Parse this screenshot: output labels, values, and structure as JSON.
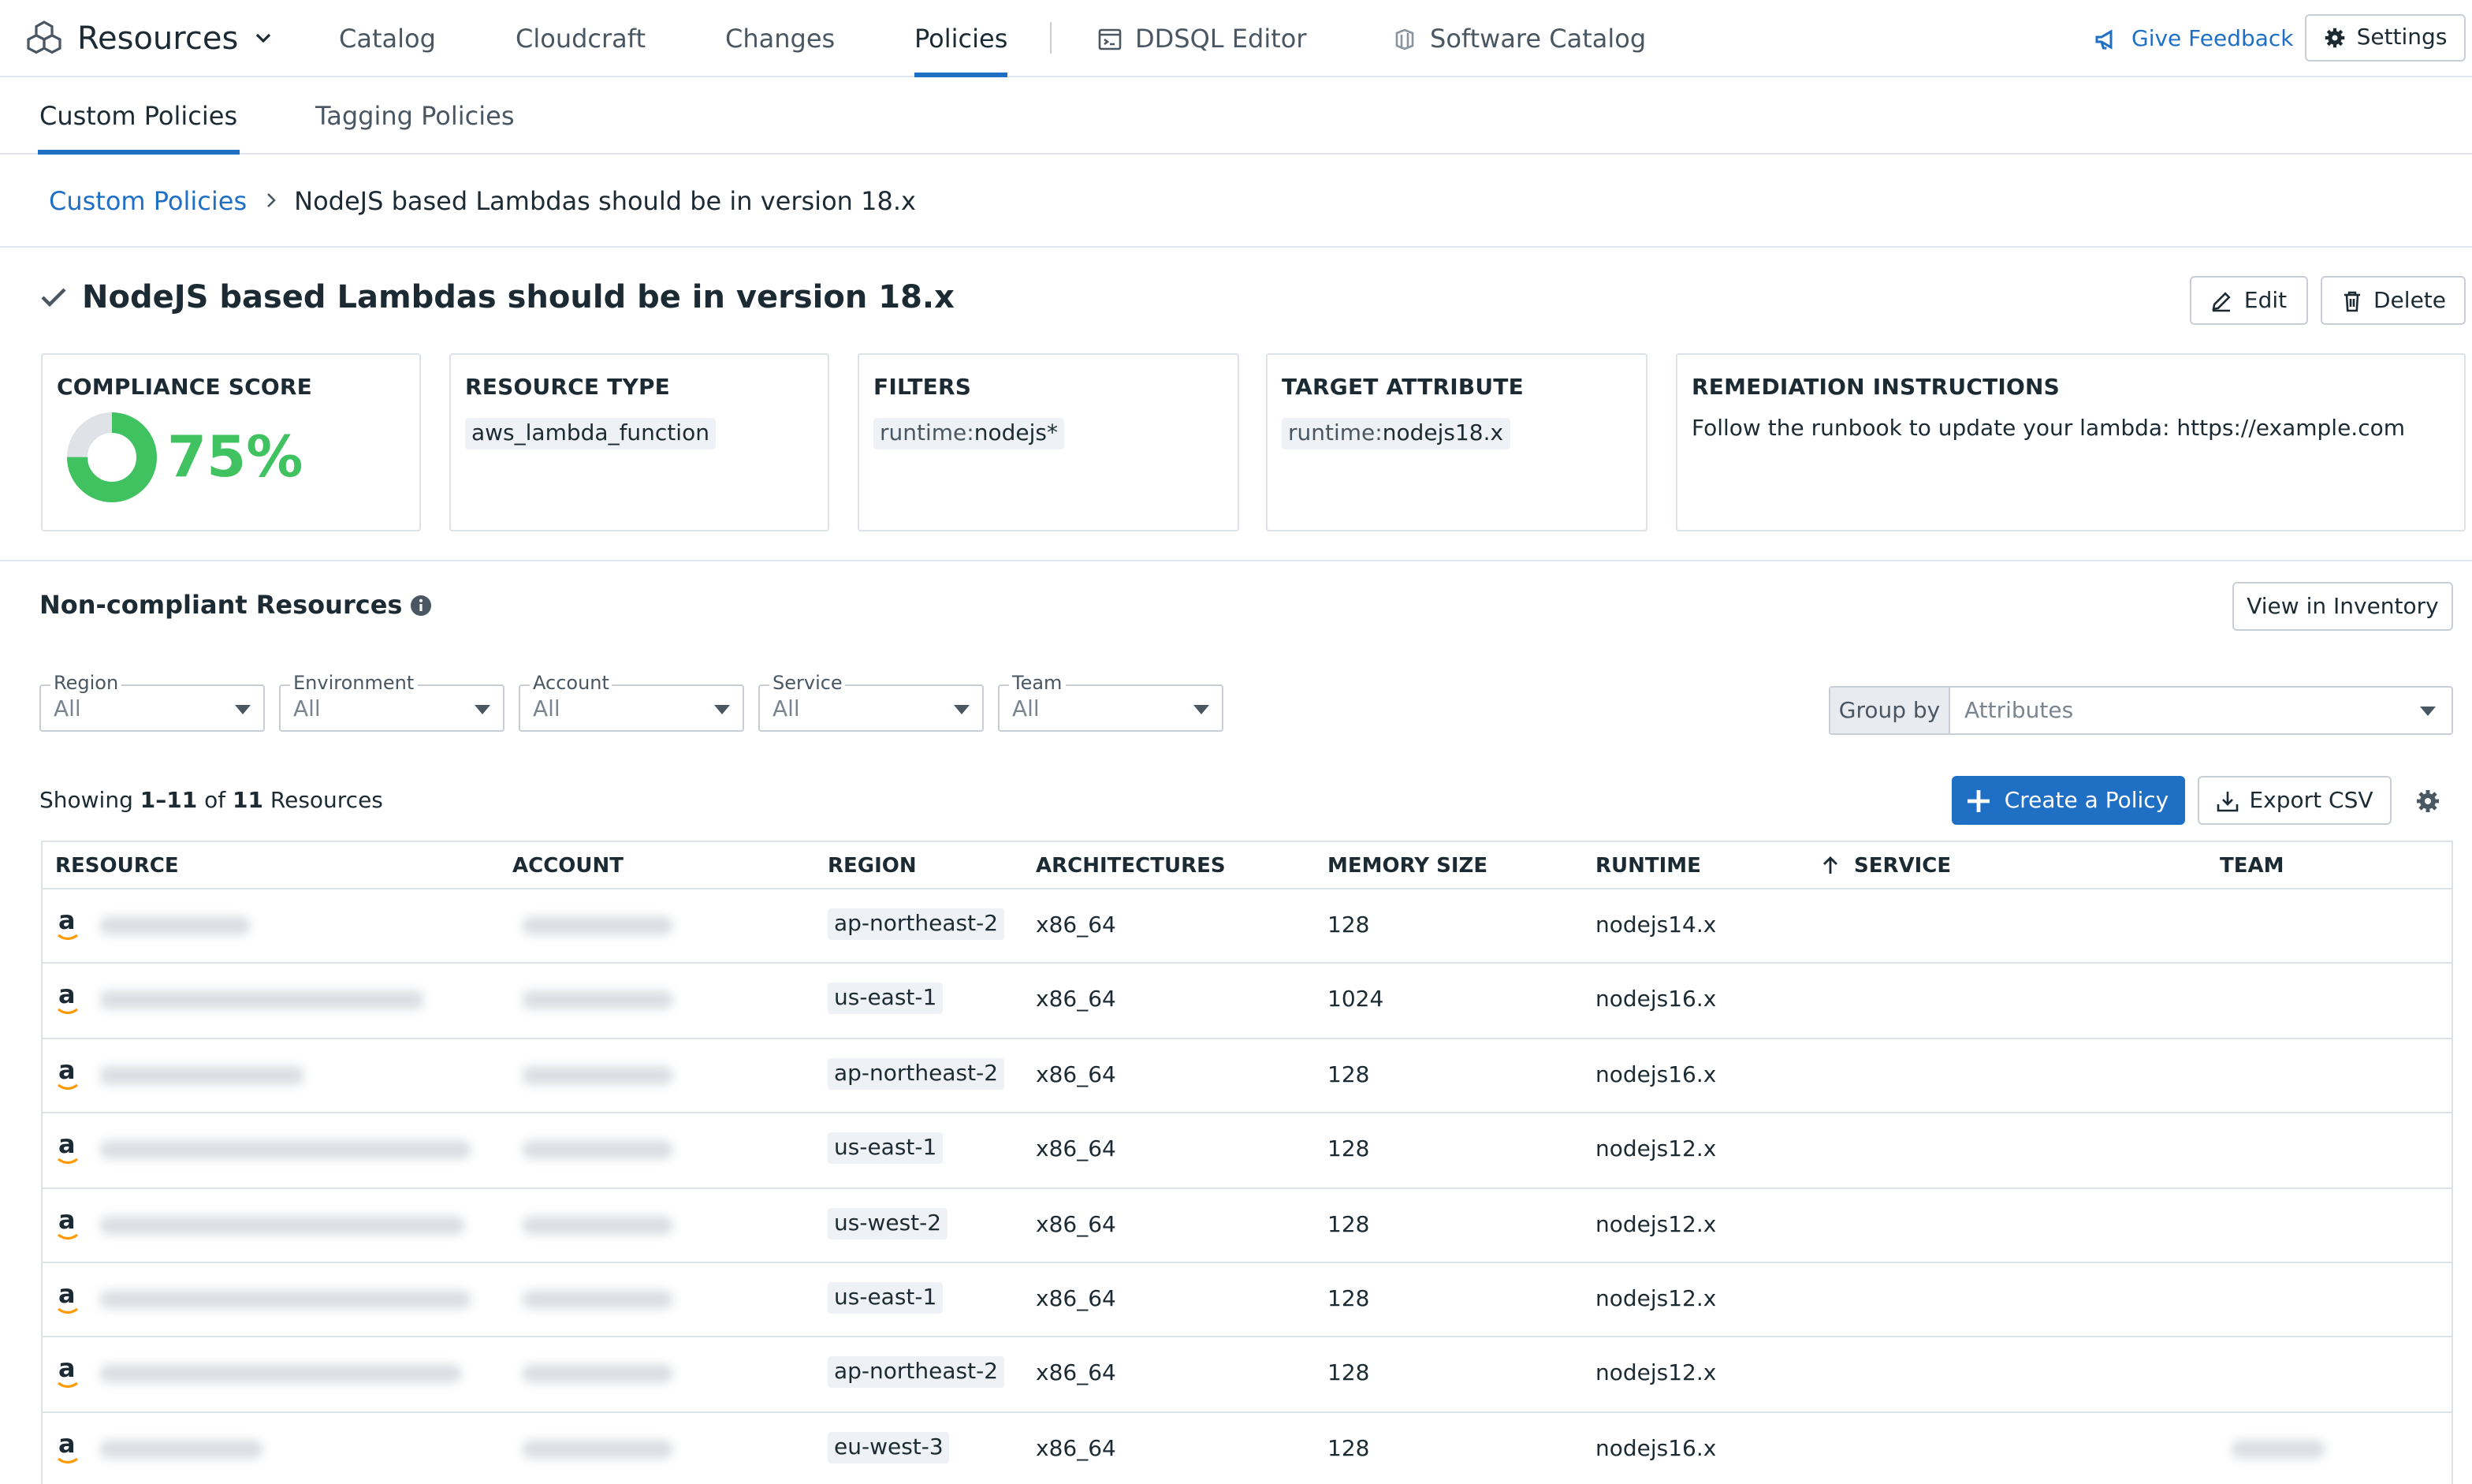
{
  "topnav": {
    "app_title": "Resources",
    "tabs": [
      {
        "label": "Catalog"
      },
      {
        "label": "Cloudcraft"
      },
      {
        "label": "Changes"
      },
      {
        "label": "Policies"
      },
      {
        "label": "DDSQL Editor"
      },
      {
        "label": "Software Catalog"
      }
    ],
    "feedback_label": "Give Feedback",
    "settings_label": "Settings"
  },
  "subtabs": [
    {
      "label": "Custom Policies"
    },
    {
      "label": "Tagging Policies"
    }
  ],
  "breadcrumb": {
    "parent": "Custom Policies",
    "current": "NodeJS based Lambdas should be in version 18.x"
  },
  "policy": {
    "title": "NodeJS based Lambdas should be in version 18.x",
    "edit_label": "Edit",
    "delete_label": "Delete"
  },
  "cards": {
    "compliance": {
      "label": "COMPLIANCE SCORE",
      "value": "75%",
      "fraction": 0.75
    },
    "resource_type": {
      "label": "RESOURCE TYPE",
      "value": "aws_lambda_function"
    },
    "filters": {
      "label": "FILTERS",
      "key": "runtime:",
      "value": "nodejs*"
    },
    "target": {
      "label": "TARGET ATTRIBUTE",
      "key": "runtime:",
      "value": "nodejs18.x"
    },
    "remediation": {
      "label": "REMEDIATION INSTRUCTIONS",
      "text": "Follow the runbook to update your lambda: https://example.com"
    }
  },
  "noncompliant": {
    "title": "Non-compliant Resources",
    "view_inventory_label": "View in Inventory",
    "filters": [
      {
        "label": "Region",
        "value": "All"
      },
      {
        "label": "Environment",
        "value": "All"
      },
      {
        "label": "Account",
        "value": "All"
      },
      {
        "label": "Service",
        "value": "All"
      },
      {
        "label": "Team",
        "value": "All"
      }
    ],
    "group_by": {
      "label": "Group by",
      "placeholder": "Attributes"
    },
    "showing": {
      "prefix": "Showing ",
      "range": "1–11",
      "mid": " of ",
      "total": "11",
      "suffix": " Resources"
    },
    "create_label": "Create a Policy",
    "export_label": "Export CSV"
  },
  "table": {
    "columns": [
      "RESOURCE",
      "ACCOUNT",
      "REGION",
      "ARCHITECTURES",
      "MEMORY SIZE",
      "RUNTIME",
      "SERVICE",
      "TEAM"
    ],
    "rows": [
      {
        "region": "ap-northeast-2",
        "arch": "x86_64",
        "memory": "128",
        "runtime": "nodejs14.x"
      },
      {
        "region": "us-east-1",
        "arch": "x86_64",
        "memory": "1024",
        "runtime": "nodejs16.x"
      },
      {
        "region": "ap-northeast-2",
        "arch": "x86_64",
        "memory": "128",
        "runtime": "nodejs16.x"
      },
      {
        "region": "us-east-1",
        "arch": "x86_64",
        "memory": "128",
        "runtime": "nodejs12.x"
      },
      {
        "region": "us-west-2",
        "arch": "x86_64",
        "memory": "128",
        "runtime": "nodejs12.x"
      },
      {
        "region": "us-east-1",
        "arch": "x86_64",
        "memory": "128",
        "runtime": "nodejs12.x"
      },
      {
        "region": "ap-northeast-2",
        "arch": "x86_64",
        "memory": "128",
        "runtime": "nodejs12.x"
      },
      {
        "region": "eu-west-3",
        "arch": "x86_64",
        "memory": "128",
        "runtime": "nodejs16.x"
      }
    ]
  },
  "colors": {
    "accent": "#1f6fc5",
    "score_green": "#3fc25f",
    "score_track": "#dfe3e8"
  }
}
